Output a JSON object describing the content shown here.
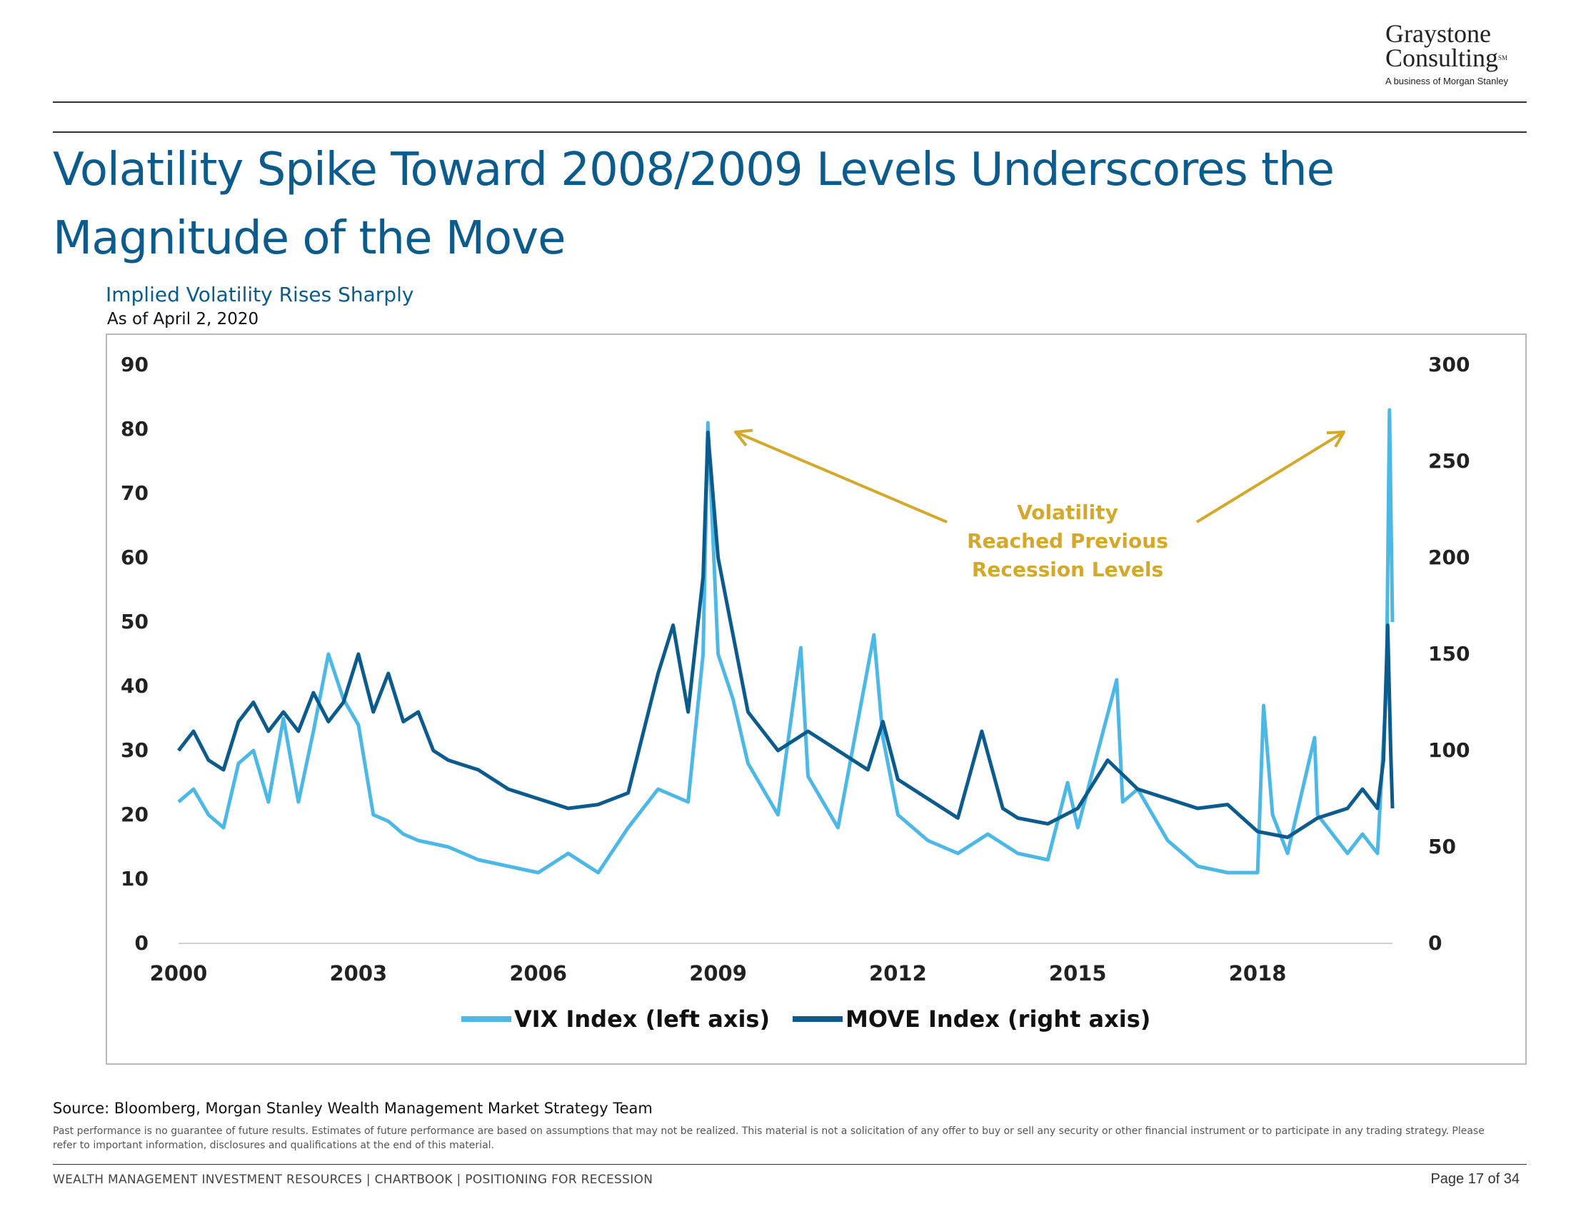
{
  "logo": {
    "line1": "Graystone",
    "line2": "Consulting",
    "mark": "SM",
    "tagline": "A business of Morgan Stanley"
  },
  "title": "Volatility Spike Toward 2008/2009 Levels Underscores the Magnitude of the Move",
  "subtitle": "Implied Volatility Rises Sharply",
  "as_of": "As of April 2, 2020",
  "source": "Source: Bloomberg, Morgan Stanley Wealth Management Market Strategy Team",
  "disclaimer": "Past performance is no guarantee of future results. Estimates of future performance are based on assumptions that may not be realized. This material is not a solicitation of any offer to buy or sell any security or other financial instrument or to participate in any trading strategy. Please refer to important information, disclosures and qualifications at the end of this material.",
  "footer": "WEALTH MANAGEMENT INVESTMENT RESOURCES  |  CHARTBOOK  |  POSITIONING FOR RECESSION",
  "page": "Page 17 of 34",
  "colors": {
    "vix": "#4bb8e6",
    "move": "#0b5b8c",
    "annotation": "#d4a82a",
    "title": "#0b5b8c"
  },
  "chart_data": {
    "type": "line",
    "x_ticks": [
      "2000",
      "2003",
      "2006",
      "2009",
      "2012",
      "2015",
      "2018"
    ],
    "x_range": [
      2000,
      2020.25
    ],
    "y_left": {
      "range": [
        0,
        90
      ],
      "ticks": [
        "0",
        "10",
        "20",
        "30",
        "40",
        "50",
        "60",
        "70",
        "80",
        "90"
      ]
    },
    "y_right": {
      "range": [
        0,
        300
      ],
      "ticks": [
        "0",
        "50",
        "100",
        "150",
        "200",
        "250",
        "300"
      ]
    },
    "annotation": {
      "lines": [
        "Volatility",
        "Reached Previous",
        "Recession Levels"
      ]
    },
    "legend_position": "bottom-center",
    "series": [
      {
        "name": "VIX Index (left axis)",
        "axis": "left",
        "x": [
          2000.0,
          2000.25,
          2000.5,
          2000.75,
          2001.0,
          2001.25,
          2001.5,
          2001.75,
          2002.0,
          2002.25,
          2002.5,
          2002.75,
          2003.0,
          2003.25,
          2003.5,
          2003.75,
          2004.0,
          2004.5,
          2005.0,
          2005.5,
          2006.0,
          2006.5,
          2007.0,
          2007.5,
          2008.0,
          2008.5,
          2008.75,
          2008.83,
          2009.0,
          2009.25,
          2009.5,
          2009.75,
          2010.0,
          2010.38,
          2010.5,
          2011.0,
          2011.6,
          2011.75,
          2012.0,
          2012.5,
          2013.0,
          2013.5,
          2014.0,
          2014.5,
          2014.83,
          2015.0,
          2015.65,
          2015.75,
          2016.0,
          2016.5,
          2017.0,
          2017.5,
          2018.0,
          2018.1,
          2018.25,
          2018.5,
          2018.95,
          2019.0,
          2019.5,
          2019.75,
          2020.0,
          2020.15,
          2020.2,
          2020.25
        ],
        "values": [
          22,
          24,
          20,
          18,
          28,
          30,
          22,
          35,
          22,
          33,
          45,
          38,
          34,
          20,
          19,
          17,
          16,
          15,
          13,
          12,
          11,
          14,
          11,
          18,
          24,
          22,
          45,
          81,
          45,
          38,
          28,
          24,
          20,
          46,
          26,
          18,
          48,
          32,
          20,
          16,
          14,
          17,
          14,
          13,
          25,
          18,
          41,
          22,
          24,
          16,
          12,
          11,
          11,
          37,
          20,
          14,
          32,
          20,
          14,
          17,
          14,
          40,
          83,
          50
        ]
      },
      {
        "name": "MOVE Index (right axis)",
        "axis": "right",
        "x": [
          2000.0,
          2000.25,
          2000.5,
          2000.75,
          2001.0,
          2001.25,
          2001.5,
          2001.75,
          2002.0,
          2002.25,
          2002.5,
          2002.75,
          2003.0,
          2003.25,
          2003.5,
          2003.75,
          2004.0,
          2004.25,
          2004.5,
          2005.0,
          2005.5,
          2006.0,
          2006.5,
          2007.0,
          2007.5,
          2008.0,
          2008.25,
          2008.5,
          2008.75,
          2008.83,
          2009.0,
          2009.25,
          2009.5,
          2010.0,
          2010.5,
          2011.0,
          2011.5,
          2011.75,
          2012.0,
          2012.5,
          2013.0,
          2013.4,
          2013.75,
          2014.0,
          2014.5,
          2015.0,
          2015.5,
          2016.0,
          2016.5,
          2017.0,
          2017.5,
          2018.0,
          2018.5,
          2019.0,
          2019.5,
          2019.75,
          2020.0,
          2020.1,
          2020.17,
          2020.22,
          2020.25
        ],
        "values": [
          100,
          110,
          95,
          90,
          115,
          125,
          110,
          120,
          110,
          130,
          115,
          125,
          150,
          120,
          140,
          115,
          120,
          100,
          95,
          90,
          80,
          75,
          70,
          72,
          78,
          140,
          165,
          120,
          190,
          265,
          200,
          160,
          120,
          100,
          110,
          100,
          90,
          115,
          85,
          75,
          65,
          110,
          70,
          65,
          62,
          70,
          95,
          80,
          75,
          70,
          72,
          58,
          55,
          65,
          70,
          80,
          70,
          95,
          165,
          100,
          70
        ]
      }
    ]
  }
}
